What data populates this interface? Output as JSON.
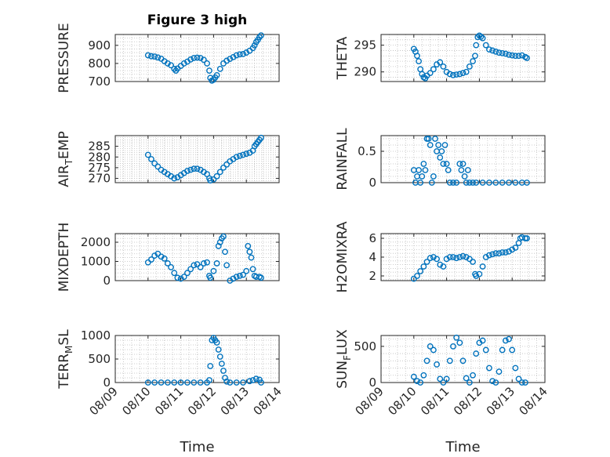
{
  "figure": {
    "title": "Figure 3 high"
  },
  "chart_data": [
    {
      "type": "scatter",
      "ylabel": "PRESSURE",
      "title": "Figure 3 high",
      "xlabel": "",
      "ylim": [
        700,
        960
      ],
      "yticks": [
        "700",
        "800",
        "900"
      ],
      "yticks_values": [
        700,
        800,
        900
      ],
      "x_range": [
        "2016-08-09",
        "2016-08-14"
      ],
      "xticks": [
        "08/09",
        "08/10",
        "08/11",
        "08/12",
        "08/13",
        "08/14"
      ],
      "grid": true,
      "marker_color": "#0072BD",
      "points": [
        [
          0.1,
          845
        ],
        [
          0.2,
          840
        ],
        [
          0.3,
          838
        ],
        [
          0.4,
          833
        ],
        [
          0.5,
          826
        ],
        [
          0.6,
          812
        ],
        [
          0.7,
          800
        ],
        [
          0.8,
          790
        ],
        [
          0.9,
          770
        ],
        [
          0.95,
          760
        ],
        [
          1.0,
          772
        ],
        [
          1.1,
          786
        ],
        [
          1.2,
          800
        ],
        [
          1.3,
          810
        ],
        [
          1.4,
          822
        ],
        [
          1.5,
          830
        ],
        [
          1.6,
          832
        ],
        [
          1.7,
          830
        ],
        [
          1.8,
          820
        ],
        [
          1.9,
          800
        ],
        [
          1.97,
          760
        ],
        [
          2.0,
          720
        ],
        [
          2.05,
          705
        ],
        [
          2.1,
          710
        ],
        [
          2.15,
          722
        ],
        [
          2.2,
          735
        ],
        [
          2.3,
          770
        ],
        [
          2.4,
          800
        ],
        [
          2.5,
          815
        ],
        [
          2.6,
          825
        ],
        [
          2.7,
          835
        ],
        [
          2.8,
          845
        ],
        [
          2.9,
          850
        ],
        [
          3.0,
          852
        ],
        [
          3.1,
          860
        ],
        [
          3.2,
          870
        ],
        [
          3.3,
          885
        ],
        [
          3.35,
          900
        ],
        [
          3.4,
          918
        ],
        [
          3.45,
          930
        ],
        [
          3.5,
          945
        ],
        [
          3.55,
          955
        ]
      ]
    },
    {
      "type": "scatter",
      "ylabel": "THETA",
      "xlabel": "",
      "ylim": [
        288.2,
        297.0
      ],
      "yticks": [
        "290",
        "295"
      ],
      "yticks_values": [
        290,
        295
      ],
      "grid": true,
      "points": [
        [
          0.1,
          294.3
        ],
        [
          0.15,
          293.8
        ],
        [
          0.2,
          293.0
        ],
        [
          0.25,
          292.0
        ],
        [
          0.3,
          290.5
        ],
        [
          0.35,
          289.6
        ],
        [
          0.4,
          289.0
        ],
        [
          0.45,
          288.8
        ],
        [
          0.5,
          289.3
        ],
        [
          0.6,
          289.8
        ],
        [
          0.7,
          290.5
        ],
        [
          0.8,
          291.4
        ],
        [
          0.9,
          291.8
        ],
        [
          1.0,
          291.0
        ],
        [
          1.1,
          290.0
        ],
        [
          1.2,
          289.6
        ],
        [
          1.3,
          289.4
        ],
        [
          1.4,
          289.5
        ],
        [
          1.5,
          289.6
        ],
        [
          1.6,
          289.8
        ],
        [
          1.7,
          290.0
        ],
        [
          1.8,
          291.0
        ],
        [
          1.9,
          292.0
        ],
        [
          1.97,
          293.0
        ],
        [
          2.0,
          295.0
        ],
        [
          2.05,
          296.5
        ],
        [
          2.1,
          296.8
        ],
        [
          2.15,
          296.6
        ],
        [
          2.2,
          296.3
        ],
        [
          2.3,
          295.0
        ],
        [
          2.4,
          294.2
        ],
        [
          2.5,
          294.0
        ],
        [
          2.6,
          293.8
        ],
        [
          2.7,
          293.6
        ],
        [
          2.8,
          293.5
        ],
        [
          2.9,
          293.4
        ],
        [
          3.0,
          293.2
        ],
        [
          3.1,
          293.1
        ],
        [
          3.2,
          293.0
        ],
        [
          3.3,
          293.0
        ],
        [
          3.4,
          293.1
        ],
        [
          3.5,
          292.8
        ],
        [
          3.55,
          292.6
        ]
      ]
    },
    {
      "type": "scatter",
      "ylabel": "AIR_TEMP",
      "ylabel_main": "AIR",
      "ylabel_sub": "T",
      "ylabel_rest": "EMP",
      "xlabel": "",
      "ylim": [
        268,
        290
      ],
      "yticks": [
        "270",
        "275",
        "280",
        "285"
      ],
      "yticks_values": [
        270,
        275,
        280,
        285
      ],
      "grid": true,
      "points": [
        [
          0.1,
          281
        ],
        [
          0.2,
          279
        ],
        [
          0.3,
          277
        ],
        [
          0.4,
          275.5
        ],
        [
          0.5,
          274
        ],
        [
          0.6,
          273
        ],
        [
          0.7,
          272
        ],
        [
          0.8,
          271
        ],
        [
          0.9,
          270
        ],
        [
          1.0,
          270.5
        ],
        [
          1.1,
          271.5
        ],
        [
          1.2,
          272.5
        ],
        [
          1.3,
          273.5
        ],
        [
          1.4,
          274
        ],
        [
          1.5,
          274.5
        ],
        [
          1.6,
          274.5
        ],
        [
          1.7,
          274
        ],
        [
          1.8,
          273
        ],
        [
          1.9,
          272
        ],
        [
          1.97,
          270
        ],
        [
          2.0,
          269
        ],
        [
          2.1,
          269.5
        ],
        [
          2.2,
          271
        ],
        [
          2.3,
          273
        ],
        [
          2.4,
          275
        ],
        [
          2.5,
          276.5
        ],
        [
          2.6,
          278
        ],
        [
          2.7,
          279
        ],
        [
          2.8,
          280
        ],
        [
          2.9,
          280.5
        ],
        [
          3.0,
          281
        ],
        [
          3.1,
          281.5
        ],
        [
          3.2,
          282
        ],
        [
          3.3,
          283
        ],
        [
          3.35,
          285
        ],
        [
          3.4,
          286
        ],
        [
          3.45,
          287
        ],
        [
          3.5,
          288
        ],
        [
          3.55,
          289
        ]
      ]
    },
    {
      "type": "scatter",
      "ylabel": "RAINFALL",
      "xlabel": "",
      "ylim": [
        0,
        0.75
      ],
      "yticks": [
        "0",
        "0.5"
      ],
      "yticks_values": [
        0,
        0.5
      ],
      "grid": true,
      "points": [
        [
          0.1,
          0.2
        ],
        [
          0.15,
          0
        ],
        [
          0.2,
          0.1
        ],
        [
          0.25,
          0.2
        ],
        [
          0.3,
          0
        ],
        [
          0.35,
          0.1
        ],
        [
          0.4,
          0.3
        ],
        [
          0.45,
          0.2
        ],
        [
          0.5,
          0.7
        ],
        [
          0.55,
          0.7
        ],
        [
          0.6,
          0.6
        ],
        [
          0.65,
          0
        ],
        [
          0.7,
          0.1
        ],
        [
          0.75,
          0.7
        ],
        [
          0.8,
          0.5
        ],
        [
          0.85,
          0.6
        ],
        [
          0.9,
          0.4
        ],
        [
          0.95,
          0.5
        ],
        [
          1.0,
          0.3
        ],
        [
          1.05,
          0.6
        ],
        [
          1.1,
          0.3
        ],
        [
          1.15,
          0.2
        ],
        [
          1.2,
          0
        ],
        [
          1.3,
          0
        ],
        [
          1.4,
          0
        ],
        [
          1.5,
          0.3
        ],
        [
          1.55,
          0.2
        ],
        [
          1.6,
          0.3
        ],
        [
          1.65,
          0.1
        ],
        [
          1.7,
          0
        ],
        [
          1.75,
          0.2
        ],
        [
          1.8,
          0
        ],
        [
          1.9,
          0
        ],
        [
          2.0,
          0
        ],
        [
          2.2,
          0
        ],
        [
          2.4,
          0
        ],
        [
          2.6,
          0
        ],
        [
          2.8,
          0
        ],
        [
          3.0,
          0
        ],
        [
          3.2,
          0
        ],
        [
          3.4,
          0
        ],
        [
          3.55,
          0
        ]
      ]
    },
    {
      "type": "scatter",
      "ylabel": "MIXDEPTH",
      "xlabel": "",
      "ylim": [
        0,
        2450
      ],
      "yticks": [
        "0",
        "1000",
        "2000"
      ],
      "yticks_values": [
        0,
        1000,
        2000
      ],
      "grid": true,
      "points": [
        [
          0.1,
          950
        ],
        [
          0.2,
          1100
        ],
        [
          0.3,
          1300
        ],
        [
          0.4,
          1400
        ],
        [
          0.5,
          1250
        ],
        [
          0.6,
          1150
        ],
        [
          0.7,
          900
        ],
        [
          0.8,
          700
        ],
        [
          0.9,
          400
        ],
        [
          1.0,
          150
        ],
        [
          1.1,
          100
        ],
        [
          1.2,
          200
        ],
        [
          1.3,
          400
        ],
        [
          1.4,
          600
        ],
        [
          1.5,
          800
        ],
        [
          1.6,
          850
        ],
        [
          1.7,
          700
        ],
        [
          1.8,
          900
        ],
        [
          1.9,
          950
        ],
        [
          1.97,
          250
        ],
        [
          2.0,
          150
        ],
        [
          2.1,
          500
        ],
        [
          2.2,
          900
        ],
        [
          2.25,
          1800
        ],
        [
          2.3,
          2000
        ],
        [
          2.35,
          2200
        ],
        [
          2.4,
          2300
        ],
        [
          2.45,
          1500
        ],
        [
          2.5,
          800
        ],
        [
          2.6,
          0
        ],
        [
          2.7,
          100
        ],
        [
          2.8,
          200
        ],
        [
          2.9,
          250
        ],
        [
          3.0,
          300
        ],
        [
          3.1,
          500
        ],
        [
          3.15,
          1800
        ],
        [
          3.2,
          1500
        ],
        [
          3.25,
          1200
        ],
        [
          3.3,
          600
        ],
        [
          3.35,
          250
        ],
        [
          3.4,
          200
        ],
        [
          3.5,
          200
        ],
        [
          3.55,
          150
        ]
      ]
    },
    {
      "type": "scatter",
      "ylabel": "H2OMIXRA",
      "xlabel": "",
      "ylim": [
        1.5,
        6.5
      ],
      "yticks": [
        "2",
        "4",
        "6"
      ],
      "yticks_values": [
        2,
        4,
        6
      ],
      "grid": true,
      "points": [
        [
          0.1,
          1.7
        ],
        [
          0.2,
          2.0
        ],
        [
          0.3,
          2.5
        ],
        [
          0.4,
          3.0
        ],
        [
          0.5,
          3.5
        ],
        [
          0.6,
          3.9
        ],
        [
          0.7,
          4.0
        ],
        [
          0.8,
          3.8
        ],
        [
          0.9,
          3.2
        ],
        [
          1.0,
          3.0
        ],
        [
          1.1,
          3.8
        ],
        [
          1.2,
          4.0
        ],
        [
          1.3,
          4.0
        ],
        [
          1.4,
          3.9
        ],
        [
          1.5,
          4.0
        ],
        [
          1.6,
          4.1
        ],
        [
          1.7,
          4.0
        ],
        [
          1.8,
          3.8
        ],
        [
          1.9,
          3.5
        ],
        [
          1.97,
          2.2
        ],
        [
          2.0,
          2.0
        ],
        [
          2.1,
          2.2
        ],
        [
          2.2,
          3.0
        ],
        [
          2.3,
          4.0
        ],
        [
          2.4,
          4.2
        ],
        [
          2.5,
          4.3
        ],
        [
          2.6,
          4.4
        ],
        [
          2.7,
          4.4
        ],
        [
          2.8,
          4.5
        ],
        [
          2.9,
          4.5
        ],
        [
          3.0,
          4.6
        ],
        [
          3.1,
          4.8
        ],
        [
          3.2,
          5.0
        ],
        [
          3.3,
          5.5
        ],
        [
          3.35,
          6.0
        ],
        [
          3.4,
          6.1
        ],
        [
          3.5,
          6.0
        ],
        [
          3.55,
          6.0
        ]
      ]
    },
    {
      "type": "scatter",
      "ylabel": "TERR_MSL",
      "ylabel_main": "TERR",
      "ylabel_sub": "M",
      "ylabel_rest": "SL",
      "xlabel": "Time",
      "ylim": [
        0,
        1000
      ],
      "yticks": [
        "0",
        "500",
        "1000"
      ],
      "yticks_values": [
        0,
        500,
        1000
      ],
      "grid": true,
      "points": [
        [
          0.1,
          0
        ],
        [
          0.3,
          0
        ],
        [
          0.5,
          0
        ],
        [
          0.7,
          0
        ],
        [
          0.9,
          0
        ],
        [
          1.1,
          0
        ],
        [
          1.3,
          0
        ],
        [
          1.5,
          0
        ],
        [
          1.7,
          0
        ],
        [
          1.9,
          0
        ],
        [
          1.97,
          50
        ],
        [
          2.0,
          350
        ],
        [
          2.05,
          900
        ],
        [
          2.1,
          950
        ],
        [
          2.15,
          900
        ],
        [
          2.2,
          850
        ],
        [
          2.25,
          700
        ],
        [
          2.3,
          550
        ],
        [
          2.35,
          400
        ],
        [
          2.4,
          250
        ],
        [
          2.45,
          100
        ],
        [
          2.5,
          20
        ],
        [
          2.6,
          0
        ],
        [
          2.8,
          0
        ],
        [
          3.0,
          0
        ],
        [
          3.2,
          30
        ],
        [
          3.3,
          50
        ],
        [
          3.4,
          80
        ],
        [
          3.5,
          60
        ],
        [
          3.55,
          0
        ]
      ]
    },
    {
      "type": "scatter",
      "ylabel": "SUN_FLUX",
      "ylabel_main": "SUN",
      "ylabel_sub": "F",
      "ylabel_rest": "LUX",
      "xlabel": "Time",
      "ylim": [
        0,
        650
      ],
      "yticks": [
        "0",
        "500"
      ],
      "yticks_values": [
        0,
        500
      ],
      "grid": true,
      "points": [
        [
          0.1,
          80
        ],
        [
          0.2,
          20
        ],
        [
          0.3,
          0
        ],
        [
          0.4,
          100
        ],
        [
          0.5,
          300
        ],
        [
          0.6,
          500
        ],
        [
          0.7,
          450
        ],
        [
          0.8,
          250
        ],
        [
          0.9,
          50
        ],
        [
          1.0,
          0
        ],
        [
          1.1,
          50
        ],
        [
          1.2,
          300
        ],
        [
          1.3,
          500
        ],
        [
          1.4,
          620
        ],
        [
          1.5,
          550
        ],
        [
          1.6,
          300
        ],
        [
          1.7,
          60
        ],
        [
          1.8,
          0
        ],
        [
          1.9,
          100
        ],
        [
          2.0,
          400
        ],
        [
          2.1,
          550
        ],
        [
          2.2,
          580
        ],
        [
          2.3,
          450
        ],
        [
          2.4,
          200
        ],
        [
          2.5,
          20
        ],
        [
          2.6,
          0
        ],
        [
          2.7,
          150
        ],
        [
          2.8,
          450
        ],
        [
          2.9,
          580
        ],
        [
          3.0,
          600
        ],
        [
          3.1,
          450
        ],
        [
          3.2,
          200
        ],
        [
          3.3,
          50
        ],
        [
          3.4,
          0
        ],
        [
          3.5,
          0
        ]
      ]
    }
  ]
}
